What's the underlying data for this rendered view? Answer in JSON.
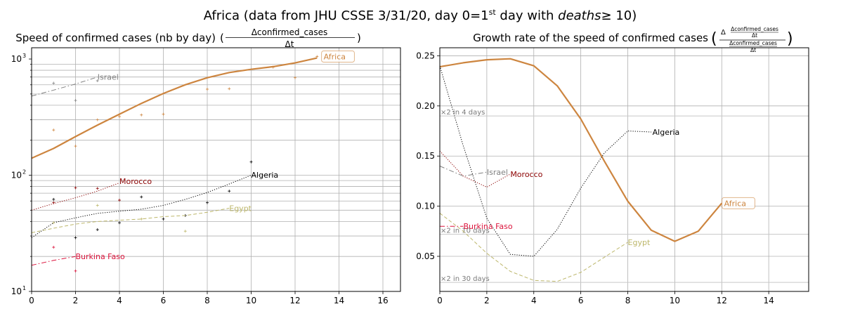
{
  "suptitle": {
    "prefix": "Africa (data from JHU CSSE 3/31/20, day 0=1",
    "sup": "st",
    "mid": " day with ",
    "italic": "deaths",
    "suffix": "≥ 10)"
  },
  "colors": {
    "Africa": "#cd853f",
    "Israel": "#808080",
    "Morocco": "#8b0000",
    "Algeria": "#000000",
    "Egypt": "#bdb76b",
    "Burkina Faso": "#dc143c"
  },
  "chart_data": [
    {
      "type": "line",
      "title_text": "Speed of confirmed cases (nb by day)",
      "title_formula": {
        "numerator": "Δconfirmed_cases",
        "denominator": "Δt"
      },
      "yscale": "log",
      "xlim": [
        0,
        16.8
      ],
      "ylim": [
        10,
        1250
      ],
      "xticks": [
        0,
        2,
        4,
        6,
        8,
        10,
        12,
        14,
        16
      ],
      "xtick_labels": [
        "0",
        "2",
        "4",
        "6",
        "8",
        "10",
        "12",
        "14",
        "16"
      ],
      "ytick_labels": [
        "10",
        "10",
        "10"
      ],
      "ytick_exponents": [
        "1",
        "2",
        "3"
      ],
      "ytick_values": [
        10,
        100,
        1000
      ],
      "grid": true,
      "series": [
        {
          "name": "Africa",
          "style": "solid",
          "width": 2.2,
          "x": [
            0,
            1,
            2,
            3,
            4,
            5,
            6,
            7,
            8,
            9,
            10,
            11,
            12,
            13
          ],
          "y": [
            140,
            170,
            215,
            270,
            335,
            415,
            505,
            600,
            690,
            765,
            815,
            860,
            925,
            1020
          ],
          "points_x": [
            1,
            2,
            3,
            4,
            5,
            6,
            8,
            9,
            11,
            12,
            13
          ],
          "points_y": [
            245,
            178,
            300,
            320,
            330,
            335,
            550,
            555,
            850,
            690,
            1050
          ]
        },
        {
          "name": "Israel",
          "style": "dashdot",
          "width": 1,
          "x": [
            0,
            1,
            2,
            3
          ],
          "y": [
            480,
            540,
            610,
            700
          ],
          "points_x": [
            1,
            2,
            3
          ],
          "points_y": [
            620,
            440,
            650
          ]
        },
        {
          "name": "Morocco",
          "style": "dotted",
          "width": 1,
          "x": [
            0,
            1,
            2,
            3,
            4
          ],
          "y": [
            50,
            57,
            64,
            73,
            86
          ],
          "points_x": [
            1,
            2,
            3,
            4
          ],
          "points_y": [
            58,
            78,
            77,
            61
          ]
        },
        {
          "name": "Algeria",
          "style": "dotted",
          "width": 1,
          "x": [
            0,
            1,
            2,
            3,
            4,
            5,
            6,
            7,
            8,
            9,
            10
          ],
          "y": [
            29,
            39,
            43,
            47,
            49,
            51,
            55,
            62,
            71,
            84,
            100
          ],
          "points_x": [
            1,
            2,
            3,
            4,
            5,
            6,
            7,
            8,
            9,
            10
          ],
          "points_y": [
            62,
            29,
            34,
            39,
            65,
            42,
            45,
            58,
            73,
            130
          ]
        },
        {
          "name": "Egypt",
          "style": "dashed",
          "width": 1,
          "x": [
            0,
            1,
            2,
            3,
            4,
            5,
            6,
            7,
            8,
            9
          ],
          "y": [
            32,
            35,
            38,
            40,
            41,
            42,
            44,
            45,
            48,
            52
          ],
          "points_x": [
            1,
            3,
            5,
            7
          ],
          "points_y": [
            39,
            55,
            42,
            33
          ]
        },
        {
          "name": "Burkina Faso",
          "style": "dashdot",
          "width": 1,
          "x": [
            0,
            1,
            2
          ],
          "y": [
            16.8,
            18.5,
            20
          ],
          "points_x": [
            1,
            2
          ],
          "points_y": [
            24,
            15
          ]
        }
      ],
      "labels": [
        {
          "name": "Israel",
          "x": 3,
          "y": 700
        },
        {
          "name": "Africa",
          "x": 13.3,
          "y": 1050,
          "boxed": true
        },
        {
          "name": "Morocco",
          "x": 4,
          "y": 89
        },
        {
          "name": "Algeria",
          "x": 10,
          "y": 101
        },
        {
          "name": "Egypt",
          "x": 9,
          "y": 52
        },
        {
          "name": "Burkina Faso",
          "x": 2,
          "y": 20
        }
      ]
    },
    {
      "type": "line",
      "title_text": "Growth rate of the speed of confirmed cases",
      "title_formula": {
        "outer": "Δ",
        "inner_num": "Δconfirmed_cases",
        "inner_den": "Δt",
        "den_num": "Δconfirmed_cases",
        "den_den": "Δt"
      },
      "yscale": "linear",
      "xlim": [
        0,
        15.7
      ],
      "ylim": [
        0.015,
        0.258
      ],
      "xticks": [
        0,
        2,
        4,
        6,
        8,
        10,
        12,
        14
      ],
      "xtick_labels": [
        "0",
        "2",
        "4",
        "6",
        "8",
        "10",
        "12",
        "14"
      ],
      "yticks": [
        0.05,
        0.1,
        0.15,
        0.2,
        0.25
      ],
      "ytick_labels": [
        "0.05",
        "0.10",
        "0.15",
        "0.20",
        "0.25"
      ],
      "grid": true,
      "reference_lines": [
        {
          "label": "×2 in 4 days",
          "y": 0.19
        },
        {
          "label": "×2 in 10 days",
          "y": 0.072
        },
        {
          "label": "×2 in 30 days",
          "y": 0.024
        }
      ],
      "series": [
        {
          "name": "Africa",
          "style": "solid",
          "width": 2.2,
          "x": [
            0,
            1,
            2,
            3,
            4,
            5,
            6,
            7,
            8,
            9,
            10,
            11,
            12
          ],
          "y": [
            0.239,
            0.243,
            0.246,
            0.247,
            0.24,
            0.22,
            0.187,
            0.145,
            0.105,
            0.076,
            0.065,
            0.075,
            0.103
          ]
        },
        {
          "name": "Algeria",
          "style": "dotted",
          "width": 1,
          "x": [
            0,
            1,
            2,
            3,
            4,
            5,
            6,
            7,
            8,
            9
          ],
          "y": [
            0.24,
            0.16,
            0.088,
            0.052,
            0.05,
            0.077,
            0.118,
            0.153,
            0.175,
            0.174
          ]
        },
        {
          "name": "Israel",
          "style": "dashdot",
          "width": 1,
          "x": [
            0,
            1,
            2
          ],
          "y": [
            0.14,
            0.13,
            0.134
          ]
        },
        {
          "name": "Morocco",
          "style": "dotted",
          "width": 1,
          "x": [
            0,
            1,
            2,
            3
          ],
          "y": [
            0.155,
            0.13,
            0.119,
            0.132
          ]
        },
        {
          "name": "Egypt",
          "style": "dashed",
          "width": 1,
          "x": [
            0,
            1,
            2,
            3,
            4,
            5,
            6,
            7,
            8
          ],
          "y": [
            0.093,
            0.075,
            0.053,
            0.035,
            0.026,
            0.025,
            0.034,
            0.049,
            0.064
          ]
        },
        {
          "name": "Burkina Faso",
          "style": "dashdot",
          "width": 1,
          "x": [
            0,
            1
          ],
          "y": [
            0.08,
            0.08
          ]
        }
      ],
      "labels": [
        {
          "name": "Algeria",
          "x": 9.05,
          "y": 0.174
        },
        {
          "name": "Israel",
          "x": 2.0,
          "y": 0.134
        },
        {
          "name": "Morocco",
          "x": 3.0,
          "y": 0.132
        },
        {
          "name": "Burkina Faso",
          "x": 1.0,
          "y": 0.08
        },
        {
          "name": "Egypt",
          "x": 8.0,
          "y": 0.064
        },
        {
          "name": "Africa",
          "x": 12.1,
          "y": 0.103,
          "boxed": true
        }
      ]
    }
  ]
}
